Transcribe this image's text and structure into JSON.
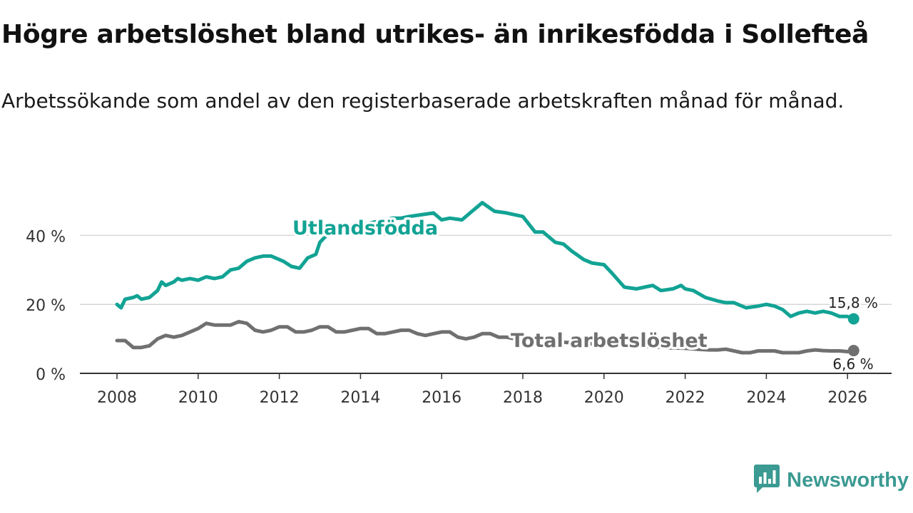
{
  "title": "Högre arbetslöshet bland utrikes- än inrikesfödda i Sollefteå",
  "subtitle": "Arbetssökande som andel av den registerbaserade arbetskraften månad för månad.",
  "brand": {
    "name": "Newsworthy",
    "icon": "newsworthy-logo-icon",
    "color": "#3b9a92"
  },
  "chart_data": {
    "type": "line",
    "title": "Högre arbetslöshet bland utrikes- än inrikesfödda i Sollefteå",
    "xlabel": "",
    "ylabel": "",
    "xlim": [
      2007.9,
      2026.2
    ],
    "ylim": [
      0,
      50
    ],
    "grid": true,
    "x_ticks": [
      2008,
      2010,
      2012,
      2014,
      2016,
      2018,
      2020,
      2022,
      2024,
      2026
    ],
    "x_tick_labels": [
      "2008",
      "2010",
      "2012",
      "2014",
      "2016",
      "2018",
      "2020",
      "2022",
      "2024",
      "2026"
    ],
    "y_ticks": [
      0,
      20,
      40
    ],
    "y_tick_labels": [
      "0 %",
      "20 %",
      "40 %"
    ],
    "series": [
      {
        "name": "Utlandsfödda",
        "label": "Utlandsfödda",
        "color": "#12a394",
        "end_label": "15,8 %",
        "x": [
          2008.0,
          2008.1,
          2008.2,
          2008.4,
          2008.5,
          2008.6,
          2008.8,
          2009.0,
          2009.1,
          2009.2,
          2009.4,
          2009.5,
          2009.6,
          2009.8,
          2010.0,
          2010.2,
          2010.4,
          2010.6,
          2010.8,
          2011.0,
          2011.2,
          2011.4,
          2011.6,
          2011.8,
          2012.0,
          2012.1,
          2012.3,
          2012.5,
          2012.7,
          2012.9,
          2013.0,
          2013.2,
          2013.4,
          2013.6,
          2013.8,
          2014.0,
          2014.2,
          2014.4,
          2014.6,
          2014.8,
          2015.0,
          2015.2,
          2015.5,
          2015.8,
          2016.0,
          2016.2,
          2016.5,
          2016.7,
          2016.9,
          2017.0,
          2017.3,
          2017.6,
          2017.8,
          2018.0,
          2018.3,
          2018.5,
          2018.8,
          2019.0,
          2019.2,
          2019.5,
          2019.7,
          2020.0,
          2020.2,
          2020.5,
          2020.8,
          2021.0,
          2021.2,
          2021.4,
          2021.7,
          2021.9,
          2022.0,
          2022.2,
          2022.5,
          2022.8,
          2023.0,
          2023.2,
          2023.5,
          2023.8,
          2024.0,
          2024.2,
          2024.4,
          2024.6,
          2024.8,
          2025.0,
          2025.2,
          2025.4,
          2025.6,
          2025.8,
          2026.0,
          2026.15
        ],
        "values": [
          20.0,
          19.0,
          21.5,
          22.0,
          22.5,
          21.5,
          22.0,
          24.0,
          26.5,
          25.5,
          26.5,
          27.5,
          27.0,
          27.5,
          27.0,
          28.0,
          27.5,
          28.0,
          30.0,
          30.5,
          32.5,
          33.5,
          34.0,
          34.0,
          33.0,
          32.5,
          31.0,
          30.5,
          33.5,
          34.5,
          38.0,
          40.5,
          41.5,
          42.5,
          43.0,
          43.0,
          43.5,
          44.0,
          44.5,
          45.0,
          45.0,
          45.5,
          46.0,
          46.5,
          44.5,
          45.0,
          44.5,
          46.5,
          48.5,
          49.5,
          47.0,
          46.5,
          46.0,
          45.5,
          41.0,
          41.0,
          38.0,
          37.5,
          35.5,
          33.0,
          32.0,
          31.5,
          29.0,
          25.0,
          24.5,
          25.0,
          25.5,
          24.0,
          24.5,
          25.5,
          24.5,
          24.0,
          22.0,
          21.0,
          20.5,
          20.5,
          19.0,
          19.5,
          20.0,
          19.5,
          18.5,
          16.5,
          17.5,
          18.0,
          17.5,
          18.0,
          17.5,
          16.5,
          16.5,
          15.8
        ]
      },
      {
        "name": "Total arbetslöshet",
        "label": "Total arbetslöshet",
        "color": "#707070",
        "end_label": "6,6 %",
        "x": [
          2008.0,
          2008.2,
          2008.4,
          2008.6,
          2008.8,
          2009.0,
          2009.2,
          2009.4,
          2009.6,
          2009.8,
          2010.0,
          2010.2,
          2010.4,
          2010.6,
          2010.8,
          2011.0,
          2011.2,
          2011.4,
          2011.6,
          2011.8,
          2012.0,
          2012.2,
          2012.4,
          2012.6,
          2012.8,
          2013.0,
          2013.2,
          2013.4,
          2013.6,
          2013.8,
          2014.0,
          2014.2,
          2014.4,
          2014.6,
          2014.8,
          2015.0,
          2015.2,
          2015.4,
          2015.6,
          2015.8,
          2016.0,
          2016.2,
          2016.4,
          2016.6,
          2016.8,
          2017.0,
          2017.2,
          2017.4,
          2017.6,
          2017.8,
          2018.0,
          2018.3,
          2018.6,
          2019.0,
          2019.3,
          2019.6,
          2020.0,
          2020.3,
          2020.6,
          2021.0,
          2021.3,
          2021.6,
          2022.0,
          2022.3,
          2022.6,
          2022.8,
          2023.0,
          2023.2,
          2023.4,
          2023.6,
          2023.8,
          2024.0,
          2024.2,
          2024.4,
          2024.6,
          2024.8,
          2025.0,
          2025.2,
          2025.4,
          2025.6,
          2025.8,
          2026.0,
          2026.15
        ],
        "values": [
          9.5,
          9.5,
          7.5,
          7.5,
          8.0,
          10.0,
          11.0,
          10.5,
          11.0,
          12.0,
          13.0,
          14.5,
          14.0,
          14.0,
          14.0,
          15.0,
          14.5,
          12.5,
          12.0,
          12.5,
          13.5,
          13.5,
          12.0,
          12.0,
          12.5,
          13.5,
          13.5,
          12.0,
          12.0,
          12.5,
          13.0,
          13.0,
          11.5,
          11.5,
          12.0,
          12.5,
          12.5,
          11.5,
          11.0,
          11.5,
          12.0,
          12.0,
          10.5,
          10.0,
          10.5,
          11.5,
          11.5,
          10.5,
          10.5,
          10.0,
          9.8,
          9.5,
          9.2,
          9.0,
          8.8,
          8.6,
          8.4,
          8.2,
          8.0,
          7.8,
          7.6,
          7.4,
          7.3,
          7.0,
          6.8,
          6.8,
          7.0,
          6.5,
          6.0,
          6.0,
          6.5,
          6.5,
          6.5,
          6.0,
          6.0,
          6.0,
          6.5,
          6.8,
          6.6,
          6.5,
          6.5,
          6.3,
          6.6
        ]
      }
    ]
  }
}
